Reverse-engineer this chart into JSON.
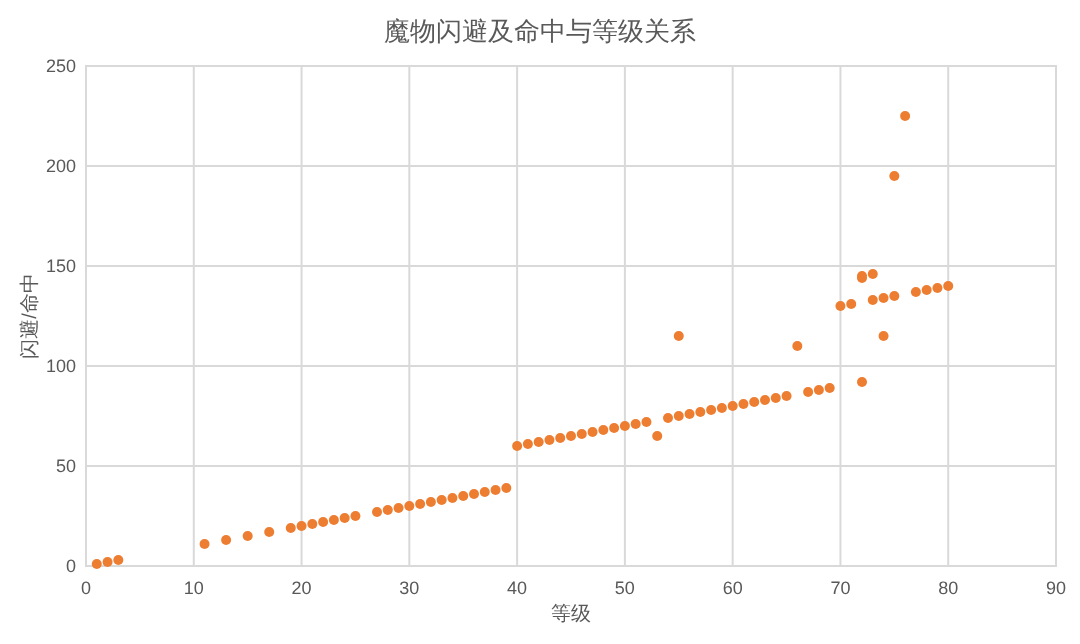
{
  "chart_data": {
    "type": "scatter",
    "title": "魔物闪避及命中与等级关系",
    "xlabel": "等级",
    "ylabel": "闪避/命中",
    "x": [
      1,
      2,
      3,
      11,
      13,
      15,
      17,
      19,
      20,
      21,
      22,
      23,
      24,
      25,
      27,
      28,
      29,
      30,
      31,
      32,
      33,
      34,
      35,
      36,
      37,
      38,
      39,
      40,
      41,
      42,
      43,
      44,
      45,
      46,
      47,
      48,
      49,
      50,
      51,
      52,
      53,
      54,
      55,
      55,
      56,
      57,
      58,
      59,
      60,
      61,
      62,
      63,
      64,
      65,
      66,
      67,
      68,
      69,
      70,
      71,
      72,
      72,
      72,
      73,
      73,
      74,
      74,
      75,
      75,
      76,
      77,
      78,
      79,
      80
    ],
    "values": [
      1,
      2,
      3,
      11,
      13,
      15,
      17,
      19,
      20,
      21,
      22,
      23,
      24,
      25,
      27,
      28,
      29,
      30,
      31,
      32,
      33,
      34,
      35,
      36,
      37,
      38,
      39,
      60,
      61,
      62,
      63,
      64,
      65,
      66,
      67,
      68,
      69,
      70,
      71,
      72,
      65,
      74,
      75,
      115,
      76,
      77,
      78,
      79,
      80,
      81,
      82,
      83,
      84,
      85,
      110,
      87,
      88,
      89,
      130,
      131,
      92,
      144,
      145,
      133,
      146,
      134,
      115,
      135,
      195,
      225,
      137,
      138,
      139,
      140
    ],
    "color": "#ed7d31",
    "marker": "circle",
    "xlim": [
      0,
      90
    ],
    "ylim": [
      0,
      250
    ],
    "xticks": [
      0,
      10,
      20,
      30,
      40,
      50,
      60,
      70,
      80,
      90
    ],
    "yticks": [
      0,
      50,
      100,
      150,
      200,
      250
    ],
    "grid": true
  }
}
